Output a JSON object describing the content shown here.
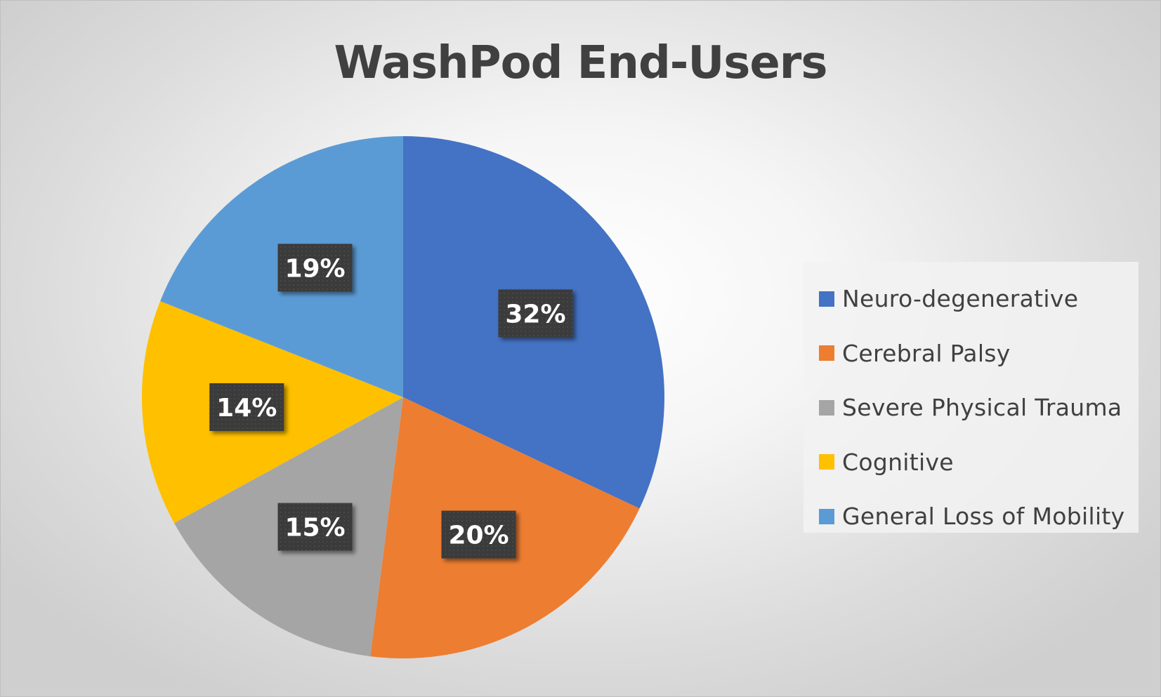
{
  "chart_data": {
    "type": "pie",
    "title": "WashPod End-Users",
    "categories": [
      "Neuro-degenerative",
      "Cerebral Palsy",
      "Severe Physical Trauma",
      "Cognitive",
      "General Loss of Mobility"
    ],
    "values": [
      32,
      20,
      15,
      14,
      19
    ],
    "value_labels": [
      "32%",
      "20%",
      "15%",
      "14%",
      "19%"
    ],
    "colors": [
      "#4472C4",
      "#ED7D31",
      "#A5A5A5",
      "#FFC000",
      "#5B9BD5"
    ],
    "start_angle_degrees": 0,
    "direction": "clockwise",
    "legend_position": "right",
    "data_label_style": "dark-box"
  }
}
